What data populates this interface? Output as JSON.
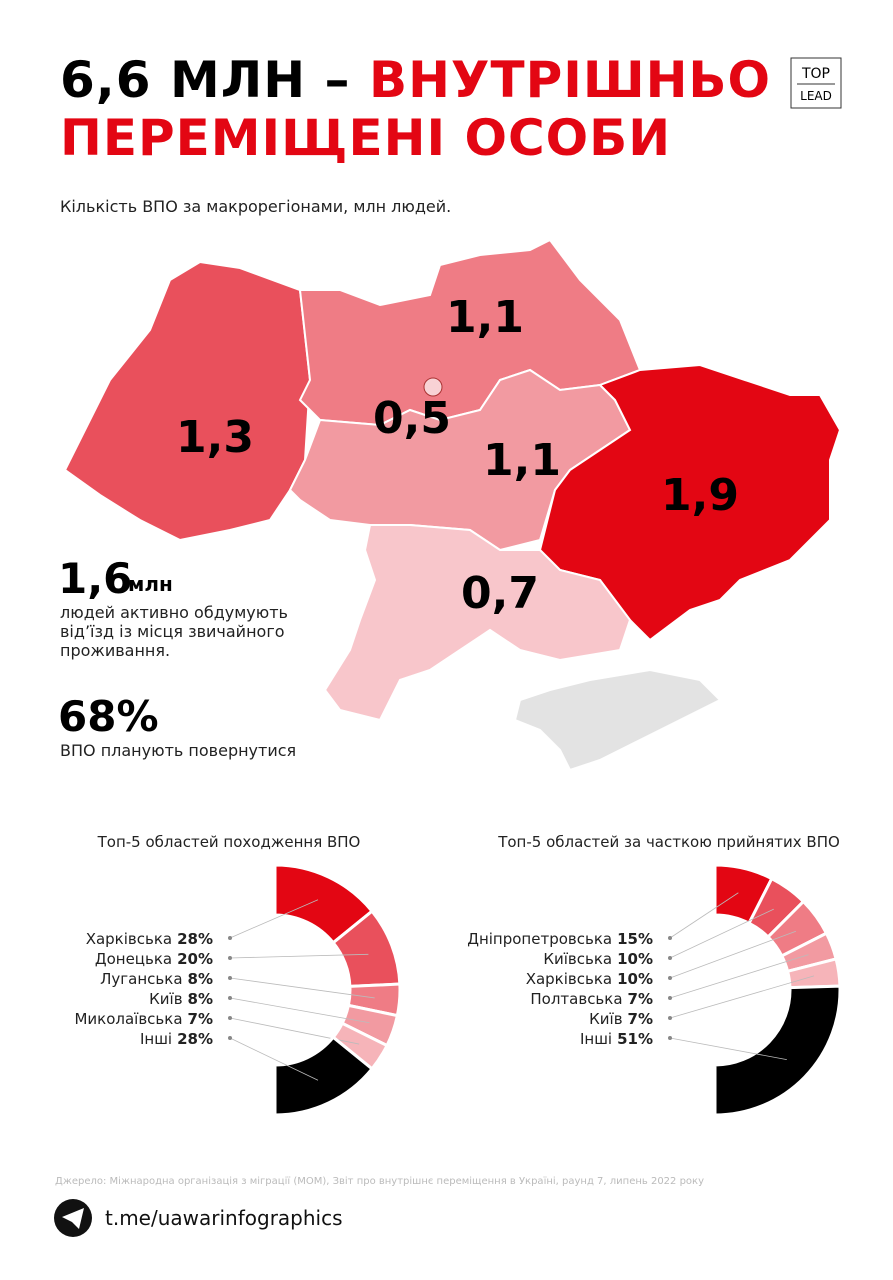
{
  "header": {
    "title_black": "6,6 МЛН –",
    "title_red_1": "ВНУТРІШНЬО",
    "title_red_2": "ПЕРЕМІЩЕНІ ОСОБИ",
    "logo_top": "TOP",
    "logo_bottom": "LEAD"
  },
  "map": {
    "subtitle": "Кількість ВПО за макрорегіонами, млн людей.",
    "regions": [
      {
        "label": "1,3",
        "color": "#e9505c"
      },
      {
        "label": "1,1",
        "color": "#ef7c85"
      },
      {
        "label": "0,5",
        "color": "#f8d2d5"
      },
      {
        "label": "1,1",
        "color": "#f29aa1"
      },
      {
        "label": "1,9",
        "color": "#e30613"
      },
      {
        "label": "0,7",
        "color": "#f8c6cb"
      }
    ]
  },
  "stats": [
    {
      "value": "1,6",
      "unit": "млн",
      "lines": [
        "людей активно обдумують",
        "від’їзд із місця звичайного",
        "проживання."
      ]
    },
    {
      "value": "68%",
      "lines": [
        "ВПО планують повернутися"
      ]
    }
  ],
  "chart_data": [
    {
      "type": "pie",
      "title": "Топ-5 областей походження ВПО",
      "categories": [
        "Харківська",
        "Донецька",
        "Луганська",
        "Київ",
        "Миколаївська",
        "Інші"
      ],
      "values": [
        28,
        20,
        8,
        8,
        7,
        28
      ],
      "value_labels": [
        "28%",
        "20%",
        "8%",
        "8%",
        "7%",
        "28%"
      ],
      "colors": [
        "#e30613",
        "#e9505c",
        "#ef7c85",
        "#f29aa1",
        "#f6b4b9",
        "#000000"
      ]
    },
    {
      "type": "pie",
      "title": "Топ-5 областей за часткою прийнятих ВПО",
      "categories": [
        "Дніпропетровська",
        "Київська",
        "Харківська",
        "Полтавська",
        "Київ",
        "Інші"
      ],
      "values": [
        15,
        10,
        10,
        7,
        7,
        51
      ],
      "value_labels": [
        "15%",
        "10%",
        "10%",
        "7%",
        "7%",
        "51%"
      ],
      "colors": [
        "#e30613",
        "#e9505c",
        "#ef7c85",
        "#f29aa1",
        "#f6b4b9",
        "#000000"
      ]
    }
  ],
  "footer": {
    "source": "Джерело: Міжнародна організація з міграції (МОМ), Звіт про внутрішнє переміщення в Україні, раунд 7, липень 2022 року",
    "link": "t.me/uawarinfographics"
  }
}
